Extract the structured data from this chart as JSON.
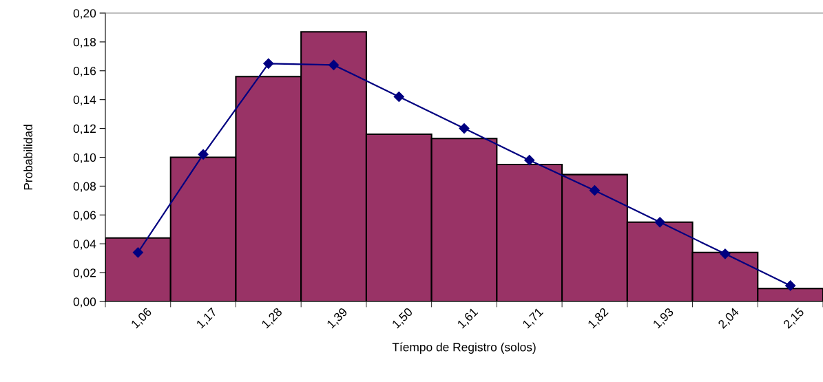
{
  "chart_data": {
    "type": "bar",
    "xlabel": "Tíempo de Registro (solos)",
    "ylabel": "Probabilidad",
    "categories": [
      "1,06",
      "1,17",
      "1,28",
      "1,39",
      "1,50",
      "1,61",
      "1,71",
      "1,82",
      "1,93",
      "2,04",
      "2,15"
    ],
    "series": [
      {
        "color": "#993366",
        "values": [
          0.044,
          0.1,
          0.156,
          0.187,
          0.116,
          0.113,
          0.095,
          0.088,
          0.055,
          0.034,
          0.009
        ]
      },
      {
        "type": "line",
        "color": "#000080",
        "marker": "diamond",
        "values": [
          0.034,
          0.102,
          0.165,
          0.164,
          0.142,
          0.12,
          0.098,
          0.077,
          0.055,
          0.033,
          0.011
        ]
      }
    ],
    "ylim": [
      0,
      0.2
    ],
    "yticks": [
      {
        "value": 0,
        "label": "0,00"
      },
      {
        "value": 0.02,
        "label": "0,02"
      },
      {
        "value": 0.04,
        "label": "0,04"
      },
      {
        "value": 0.06,
        "label": "0,06"
      },
      {
        "value": 0.08,
        "label": "0,08"
      },
      {
        "value": 0.1,
        "label": "0,10"
      },
      {
        "value": 0.12,
        "label": "0,12"
      },
      {
        "value": 0.14,
        "label": "0,14"
      },
      {
        "value": 0.16,
        "label": "0,16"
      },
      {
        "value": 0.18,
        "label": "0,18"
      },
      {
        "value": 0.2,
        "label": "0,20"
      }
    ],
    "grid": false,
    "legend": false
  }
}
